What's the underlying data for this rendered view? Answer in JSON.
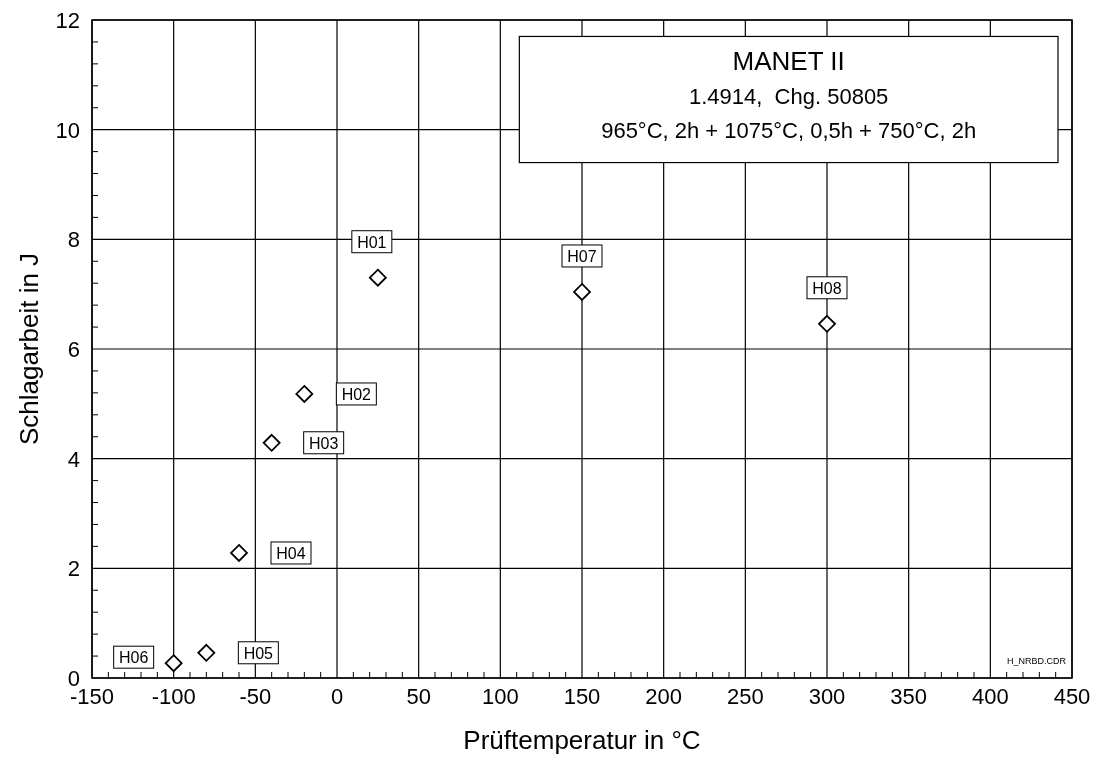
{
  "chart_data": {
    "type": "scatter",
    "title": "MANET II",
    "subtitle": "1.4914,  Chg. 50805\n965°C, 2h + 1075°C, 0,5h + 750°C, 2h",
    "xlabel": "Prüftemperatur in °C",
    "ylabel": "Schlagarbeit in J",
    "x": [
      25,
      -20,
      -40,
      -60,
      -80,
      -100,
      150,
      300
    ],
    "series": [
      {
        "color": "#000000",
        "values": [
          7.3,
          5.18,
          4.29,
          2.28,
          0.46,
          0.27,
          7.04,
          6.46
        ]
      }
    ],
    "marker": "diamond",
    "xlim": [
      -150,
      450
    ],
    "xticks": [
      -150,
      {
        "value": -140,
        "label": null
      },
      {
        "value": -130,
        "label": null
      },
      {
        "value": -120,
        "label": null
      },
      {
        "value": -110,
        "label": null
      },
      -100,
      {
        "value": -90,
        "label": null
      },
      {
        "value": -80,
        "label": null
      },
      {
        "value": -70,
        "label": null
      },
      {
        "value": -60,
        "label": null
      },
      -50,
      {
        "value": -40,
        "label": null
      },
      {
        "value": -30,
        "label": null
      },
      {
        "value": -20,
        "label": null
      },
      {
        "value": -10,
        "label": null
      },
      0,
      {
        "value": 10,
        "label": null
      },
      {
        "value": 20,
        "label": null
      },
      {
        "value": 30,
        "label": null
      },
      {
        "value": 40,
        "label": null
      },
      50,
      {
        "value": 60,
        "label": null
      },
      {
        "value": 70,
        "label": null
      },
      {
        "value": 80,
        "label": null
      },
      {
        "value": 90,
        "label": null
      },
      100,
      {
        "value": 110,
        "label": null
      },
      {
        "value": 120,
        "label": null
      },
      {
        "value": 130,
        "label": null
      },
      {
        "value": 140,
        "label": null
      },
      150,
      {
        "value": 160,
        "label": null
      },
      {
        "value": 170,
        "label": null
      },
      {
        "value": 180,
        "label": null
      },
      {
        "value": 190,
        "label": null
      },
      200,
      {
        "value": 210,
        "label": null
      },
      {
        "value": 220,
        "label": null
      },
      {
        "value": 230,
        "label": null
      },
      {
        "value": 240,
        "label": null
      },
      250,
      {
        "value": 260,
        "label": null
      },
      {
        "value": 270,
        "label": null
      },
      {
        "value": 280,
        "label": null
      },
      {
        "value": 290,
        "label": null
      },
      300,
      {
        "value": 310,
        "label": null
      },
      {
        "value": 320,
        "label": null
      },
      {
        "value": 330,
        "label": null
      },
      {
        "value": 340,
        "label": null
      },
      350,
      {
        "value": 360,
        "label": null
      },
      {
        "value": 370,
        "label": null
      },
      {
        "value": 380,
        "label": null
      },
      {
        "value": 390,
        "label": null
      },
      400,
      {
        "value": 410,
        "label": null
      },
      {
        "value": 420,
        "label": null
      },
      {
        "value": 430,
        "label": null
      },
      {
        "value": 440,
        "label": null
      },
      450
    ],
    "ylim": [
      0,
      12
    ],
    "yticks": [
      0,
      {
        "value": 0.4,
        "label": null
      },
      {
        "value": 0.8,
        "label": null
      },
      {
        "value": 1.2,
        "label": null
      },
      {
        "value": 1.6,
        "label": null
      },
      2,
      {
        "value": 2.4,
        "label": null
      },
      {
        "value": 2.8,
        "label": null
      },
      {
        "value": 3.2,
        "label": null
      },
      {
        "value": 3.6,
        "label": null
      },
      4,
      {
        "value": 4.4,
        "label": null
      },
      {
        "value": 4.8,
        "label": null
      },
      {
        "value": 5.2,
        "label": null
      },
      {
        "value": 5.6,
        "label": null
      },
      6,
      {
        "value": 6.4,
        "label": null
      },
      {
        "value": 6.8,
        "label": null
      },
      {
        "value": 7.2,
        "label": null
      },
      {
        "value": 7.6,
        "label": null
      },
      8,
      {
        "value": 8.4,
        "label": null
      },
      {
        "value": 8.8,
        "label": null
      },
      {
        "value": 9.2,
        "label": null
      },
      {
        "value": 9.6,
        "label": null
      },
      10,
      {
        "value": 10.4,
        "label": null
      },
      {
        "value": 10.8,
        "label": null
      },
      {
        "value": 11.2,
        "label": null
      },
      {
        "value": 11.6,
        "label": null
      },
      12
    ],
    "grid": true,
    "annotations": [
      {
        "text": "H01",
        "x": 25,
        "y": 7.3
      },
      {
        "text": "H02",
        "x": -20,
        "y": 5.18
      },
      {
        "text": "H03",
        "x": -40,
        "y": 4.29
      },
      {
        "text": "H04",
        "x": -60,
        "y": 2.28
      },
      {
        "text": "H05",
        "x": -80,
        "y": 0.46
      },
      {
        "text": "H06",
        "x": -100,
        "y": 0.27
      },
      {
        "text": "H07",
        "x": 150,
        "y": 7.04
      },
      {
        "text": "H08",
        "x": 300,
        "y": 6.46
      },
      "H_NRBD.CDR"
    ]
  }
}
